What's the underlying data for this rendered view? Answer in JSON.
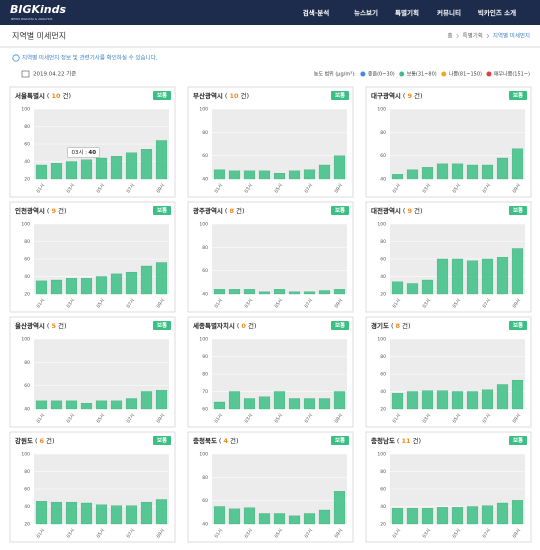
{
  "header": {
    "logo": "BIGKinds",
    "logo_sub": "NEWS BIGDATA & ANALYSIS",
    "nav": [
      "검색·분석",
      "뉴스보기",
      "특별기획",
      "커뮤니티",
      "빅카인즈 소개"
    ]
  },
  "page_title": "지역별 미세먼지",
  "breadcrumb": [
    "홈",
    "특별기획",
    "지역별 미세먼지"
  ],
  "notice": "지역별 미세먼지 정보 및 관련기사를 확인하실 수 있습니다.",
  "date": "2019.04.22 기준",
  "legend": {
    "label": "농도 범위 (μg/m³):",
    "items": [
      {
        "name": "좋음(0~30)",
        "color": "#3b8fe0"
      },
      {
        "name": "보통(31~80)",
        "color": "#3cbf85"
      },
      {
        "name": "나쁨(81~150)",
        "color": "#f2a72a"
      },
      {
        "name": "매우나쁨(151~)",
        "color": "#e0403a"
      }
    ]
  },
  "card_labels": {
    "open": "(",
    "unit": "건)"
  },
  "chart_data": [
    {
      "type": "bar",
      "region": "서울특별시",
      "count": 10,
      "status": "보통",
      "color": "#3cbf85",
      "categories": [
        "01시",
        null,
        "03시",
        null,
        "05시",
        null,
        "07시",
        null,
        "09시"
      ],
      "values": [
        36,
        38,
        40,
        42,
        44,
        46,
        50,
        54,
        64
      ],
      "ylim": [
        20,
        100
      ],
      "yticks": [
        20,
        40,
        60,
        80,
        100
      ],
      "tooltip": {
        "category": "03시",
        "sep": ":",
        "value": 40
      }
    },
    {
      "type": "bar",
      "region": "부산광역시",
      "count": 10,
      "status": "보통",
      "color": "#3cbf85",
      "categories": [
        "01시",
        null,
        "03시",
        null,
        "05시",
        null,
        "07시",
        null,
        "09시"
      ],
      "values": [
        48,
        47,
        47,
        47,
        45,
        47,
        48,
        52,
        60
      ],
      "ylim": [
        40,
        100
      ],
      "yticks": [
        40,
        60,
        80,
        100
      ]
    },
    {
      "type": "bar",
      "region": "대구광역시",
      "count": 9,
      "status": "보통",
      "color": "#3cbf85",
      "categories": [
        "01시",
        null,
        "03시",
        null,
        "05시",
        null,
        "07시",
        null,
        "09시"
      ],
      "values": [
        44,
        48,
        50,
        53,
        53,
        52,
        52,
        58,
        66
      ],
      "ylim": [
        40,
        100
      ],
      "yticks": [
        40,
        60,
        80,
        100
      ]
    },
    {
      "type": "bar",
      "region": "인천광역시",
      "count": 9,
      "status": "보통",
      "color": "#3cbf85",
      "categories": [
        "01시",
        null,
        "03시",
        null,
        "05시",
        null,
        "07시",
        null,
        "09시"
      ],
      "values": [
        35,
        36,
        38,
        38,
        40,
        43,
        45,
        52,
        56
      ],
      "ylim": [
        20,
        100
      ],
      "yticks": [
        20,
        40,
        60,
        80,
        100
      ]
    },
    {
      "type": "bar",
      "region": "광주광역시",
      "count": 8,
      "status": "보통",
      "color": "#3cbf85",
      "categories": [
        "01시",
        null,
        "03시",
        null,
        "05시",
        null,
        "07시",
        null,
        "09시"
      ],
      "values": [
        44,
        44,
        44,
        42,
        44,
        42,
        42,
        43,
        44
      ],
      "ylim": [
        40,
        100
      ],
      "yticks": [
        40,
        60,
        80,
        100
      ]
    },
    {
      "type": "bar",
      "region": "대전광역시",
      "count": 9,
      "status": "보통",
      "color": "#3cbf85",
      "categories": [
        "01시",
        null,
        "03시",
        null,
        "05시",
        null,
        "07시",
        null,
        "09시"
      ],
      "values": [
        34,
        32,
        36,
        60,
        60,
        58,
        60,
        62,
        72
      ],
      "ylim": [
        20,
        100
      ],
      "yticks": [
        20,
        40,
        60,
        80,
        100
      ]
    },
    {
      "type": "bar",
      "region": "울산광역시",
      "count": 5,
      "status": "보통",
      "color": "#3cbf85",
      "categories": [
        "01시",
        null,
        "03시",
        null,
        "05시",
        null,
        "07시",
        null,
        "09시"
      ],
      "values": [
        47,
        47,
        47,
        45,
        47,
        47,
        49,
        55,
        56
      ],
      "ylim": [
        40,
        100
      ],
      "yticks": [
        40,
        60,
        80,
        100
      ]
    },
    {
      "type": "bar",
      "region": "세종특별자치시",
      "count": 0,
      "status": "보통",
      "color": "#3cbf85",
      "categories": [
        "01시",
        null,
        "03시",
        null,
        "05시",
        null,
        "07시",
        null,
        "09시"
      ],
      "values": [
        64,
        70,
        66,
        67,
        70,
        66,
        66,
        66,
        70
      ],
      "ylim": [
        60,
        100
      ],
      "yticks": [
        60,
        70,
        80,
        90,
        100
      ]
    },
    {
      "type": "bar",
      "region": "경기도",
      "count": 8,
      "status": "보통",
      "color": "#3cbf85",
      "categories": [
        "01시",
        null,
        "03시",
        null,
        "05시",
        null,
        "07시",
        null,
        "09시"
      ],
      "values": [
        38,
        40,
        41,
        41,
        40,
        40,
        42,
        48,
        53
      ],
      "ylim": [
        20,
        100
      ],
      "yticks": [
        20,
        40,
        60,
        80,
        100
      ]
    },
    {
      "type": "bar",
      "region": "강원도",
      "count": 6,
      "status": "보통",
      "color": "#3cbf85",
      "categories": [
        "01시",
        null,
        "03시",
        null,
        "05시",
        null,
        "07시",
        null,
        "09시"
      ],
      "values": [
        46,
        45,
        45,
        44,
        42,
        41,
        41,
        45,
        48
      ],
      "ylim": [
        20,
        100
      ],
      "yticks": [
        20,
        40,
        60,
        80,
        100
      ]
    },
    {
      "type": "bar",
      "region": "충청북도",
      "count": 4,
      "status": "보통",
      "color": "#3cbf85",
      "categories": [
        "01시",
        null,
        "03시",
        null,
        "05시",
        null,
        "07시",
        null,
        "09시"
      ],
      "values": [
        55,
        53,
        54,
        49,
        49,
        47,
        49,
        52,
        68
      ],
      "ylim": [
        40,
        100
      ],
      "yticks": [
        40,
        60,
        80,
        100
      ]
    },
    {
      "type": "bar",
      "region": "충청남도",
      "count": 11,
      "status": "보통",
      "color": "#3cbf85",
      "categories": [
        "01시",
        null,
        "03시",
        null,
        "05시",
        null,
        "07시",
        null,
        "09시"
      ],
      "values": [
        38,
        38,
        38,
        39,
        39,
        40,
        41,
        44,
        47
      ],
      "ylim": [
        20,
        100
      ],
      "yticks": [
        20,
        40,
        60,
        80,
        100
      ]
    }
  ]
}
